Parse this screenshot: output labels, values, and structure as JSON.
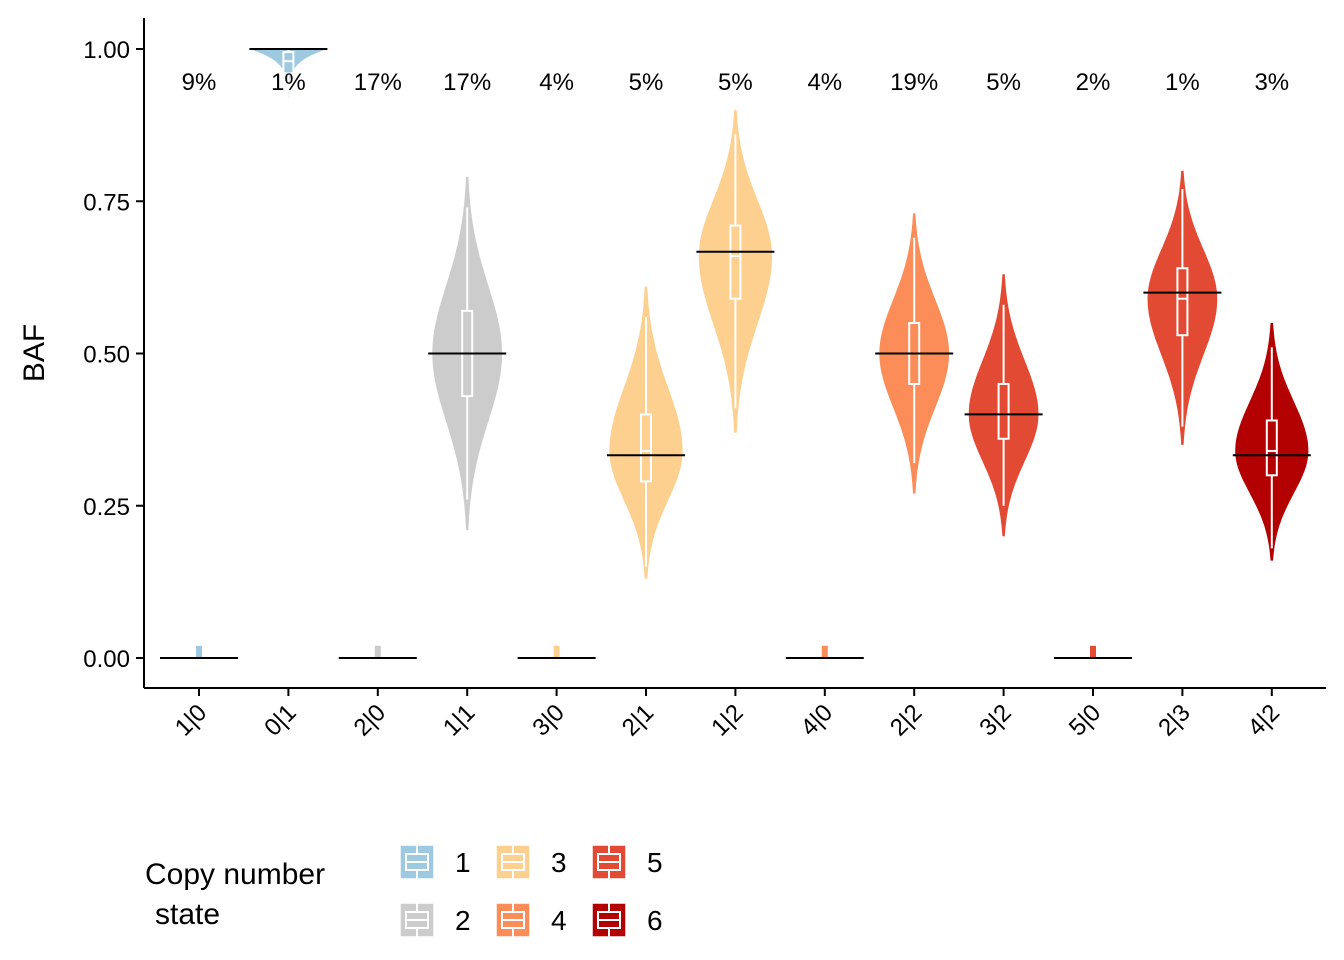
{
  "chart_data": {
    "type": "violin",
    "ylabel": "BAF",
    "ylim": [
      -0.05,
      1.05
    ],
    "yticks": [
      "0.00",
      "0.25",
      "0.50",
      "0.75",
      "1.00"
    ],
    "ytick_values": [
      0,
      0.25,
      0.5,
      0.75,
      1.0
    ],
    "legend": {
      "title_line1": "Copy number",
      "title_line2": "state",
      "position": "bottom",
      "entries": [
        {
          "label": "1",
          "color": "#9ecae1"
        },
        {
          "label": "2",
          "color": "#cccccc"
        },
        {
          "label": "3",
          "color": "#fdd08f"
        },
        {
          "label": "4",
          "color": "#fc8d59"
        },
        {
          "label": "5",
          "color": "#e34a33"
        },
        {
          "label": "6",
          "color": "#b30000"
        }
      ]
    },
    "categories": [
      {
        "label": "1|0",
        "state": 1,
        "pct": "9%",
        "expected": 0.0,
        "type": "zero",
        "q1": 0.0,
        "median": 0.0,
        "q3": 0.01,
        "wlo": 0.0,
        "whi": 0.02,
        "vmin": 0.0,
        "vmax": 0.02,
        "width": 0.0
      },
      {
        "label": "0|1",
        "state": 1,
        "pct": "1%",
        "expected": 1.0,
        "type": "top",
        "q1": 0.96,
        "median": 0.98,
        "q3": 0.995,
        "wlo": 0.93,
        "whi": 1.0,
        "vmin": 0.88,
        "vmax": 1.0,
        "width": 0.45
      },
      {
        "label": "2|0",
        "state": 2,
        "pct": "17%",
        "expected": 0.0,
        "type": "zero",
        "q1": 0.0,
        "median": 0.0,
        "q3": 0.01,
        "wlo": 0.0,
        "whi": 0.02,
        "vmin": 0.0,
        "vmax": 0.02,
        "width": 0.0
      },
      {
        "label": "1|1",
        "state": 2,
        "pct": "17%",
        "expected": 0.5,
        "type": "violin",
        "q1": 0.43,
        "median": 0.5,
        "q3": 0.57,
        "wlo": 0.26,
        "whi": 0.74,
        "vmin": 0.21,
        "vmax": 0.79,
        "width": 0.4
      },
      {
        "label": "3|0",
        "state": 3,
        "pct": "4%",
        "expected": 0.0,
        "type": "zero",
        "q1": 0.0,
        "median": 0.0,
        "q3": 0.01,
        "wlo": 0.0,
        "whi": 0.02,
        "vmin": 0.0,
        "vmax": 0.02,
        "width": 0.0
      },
      {
        "label": "2|1",
        "state": 3,
        "pct": "5%",
        "expected": 0.333,
        "type": "violin",
        "q1": 0.29,
        "median": 0.34,
        "q3": 0.4,
        "wlo": 0.15,
        "whi": 0.56,
        "vmin": 0.13,
        "vmax": 0.61,
        "width": 0.42
      },
      {
        "label": "1|2",
        "state": 3,
        "pct": "5%",
        "expected": 0.667,
        "type": "violin",
        "q1": 0.59,
        "median": 0.66,
        "q3": 0.71,
        "wlo": 0.41,
        "whi": 0.86,
        "vmin": 0.37,
        "vmax": 0.9,
        "width": 0.42
      },
      {
        "label": "4|0",
        "state": 4,
        "pct": "4%",
        "expected": 0.0,
        "type": "zero",
        "q1": 0.0,
        "median": 0.0,
        "q3": 0.01,
        "wlo": 0.0,
        "whi": 0.02,
        "vmin": 0.0,
        "vmax": 0.02,
        "width": 0.0
      },
      {
        "label": "2|2",
        "state": 4,
        "pct": "19%",
        "expected": 0.5,
        "type": "violin",
        "q1": 0.45,
        "median": 0.5,
        "q3": 0.55,
        "wlo": 0.32,
        "whi": 0.69,
        "vmin": 0.27,
        "vmax": 0.73,
        "width": 0.4
      },
      {
        "label": "3|2",
        "state": 5,
        "pct": "5%",
        "expected": 0.4,
        "type": "violin",
        "q1": 0.36,
        "median": 0.4,
        "q3": 0.45,
        "wlo": 0.25,
        "whi": 0.58,
        "vmin": 0.2,
        "vmax": 0.63,
        "width": 0.4
      },
      {
        "label": "5|0",
        "state": 5,
        "pct": "2%",
        "expected": 0.0,
        "type": "zero",
        "q1": 0.0,
        "median": 0.0,
        "q3": 0.01,
        "wlo": 0.0,
        "whi": 0.02,
        "vmin": 0.0,
        "vmax": 0.02,
        "width": 0.0
      },
      {
        "label": "2|3",
        "state": 5,
        "pct": "1%",
        "expected": 0.6,
        "type": "violin",
        "q1": 0.53,
        "median": 0.59,
        "q3": 0.64,
        "wlo": 0.38,
        "whi": 0.77,
        "vmin": 0.35,
        "vmax": 0.8,
        "width": 0.4
      },
      {
        "label": "4|2",
        "state": 6,
        "pct": "3%",
        "expected": 0.333,
        "type": "violin",
        "q1": 0.3,
        "median": 0.34,
        "q3": 0.39,
        "wlo": 0.18,
        "whi": 0.51,
        "vmin": 0.16,
        "vmax": 0.55,
        "width": 0.42
      }
    ]
  }
}
